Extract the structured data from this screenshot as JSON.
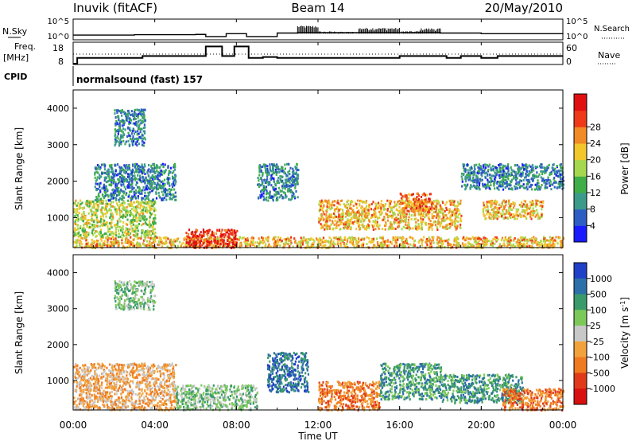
{
  "header": {
    "site": "Inuvik (fitACF)",
    "beam": "Beam 14",
    "date": "20/May/2010"
  },
  "left_labels": {
    "nsky": "N.Sky",
    "freq_a": "Freq.",
    "freq_b": "[MHz]",
    "cpid": "CPID"
  },
  "right_labels": {
    "nsearch": "N.Search",
    "nave": "Nave"
  },
  "nsky_ticks": [
    "10^5",
    "10^0"
  ],
  "nsearch_ticks": [
    "10^5",
    "10^0"
  ],
  "freq_ticks": [
    "18",
    "8"
  ],
  "nave_ticks": [
    "60",
    "0"
  ],
  "cpid_text": "normalsound (fast) 157",
  "time_ticks": [
    "00:00",
    "04:00",
    "08:00",
    "12:00",
    "16:00",
    "20:00",
    "00:00"
  ],
  "xlabel": "Time UT",
  "range_label": "Slant Range [km]",
  "range_ticks": [
    "1000",
    "2000",
    "3000",
    "4000"
  ],
  "power_colorbar": {
    "label": "Power [dB]",
    "ticks": [
      "4",
      "8",
      "12",
      "16",
      "20",
      "24",
      "28"
    ],
    "colors": [
      "#1a1aff",
      "#2e5dc4",
      "#3c9a8a",
      "#3fae49",
      "#a6d84f",
      "#f2c72c",
      "#f08b25",
      "#ee3a18",
      "#e01010"
    ]
  },
  "velocity_colorbar": {
    "label": "Velocity [m s",
    "label_sup": "-1",
    "label_end": "]",
    "ticks": [
      "1000",
      "500",
      "100",
      "25",
      "-25",
      "-100",
      "-500",
      "-1000"
    ],
    "colors": [
      "#2040c8",
      "#2d6fa8",
      "#3a9a6a",
      "#7cc95a",
      "#c8c8c8",
      "#f2a23a",
      "#f07a20",
      "#e03a1a",
      "#d81010"
    ]
  },
  "chart_data": [
    {
      "type": "line",
      "panel": "N.Sky / N.Search",
      "x_range": [
        "00:00",
        "24:00"
      ],
      "y_scale": "log",
      "y_range": [
        1,
        100000
      ],
      "series": [
        {
          "name": "N.Sky",
          "x": [
            0,
            3,
            6,
            6.5,
            7.5,
            8.5,
            10,
            11,
            12,
            13,
            14,
            15,
            16,
            17,
            18,
            20,
            22,
            24
          ],
          "y": [
            8,
            10,
            12,
            3,
            20,
            3,
            30,
            3000,
            80,
            60,
            800,
            800,
            100,
            600,
            30,
            20,
            20,
            15
          ]
        }
      ]
    },
    {
      "type": "line",
      "panel": "Freq. [MHz] / Nave",
      "x_range": [
        "00:00",
        "24:00"
      ],
      "y_range": [
        8,
        18
      ],
      "series": [
        {
          "name": "Freq.",
          "x": [
            0,
            0.2,
            3.2,
            3.4,
            6.5,
            7.3,
            7.9,
            8.6,
            9.3,
            10,
            16,
            18.3,
            19,
            20,
            20.8,
            24
          ],
          "y": [
            8,
            11,
            11,
            12,
            17,
            12,
            17,
            11,
            11.5,
            11,
            12,
            11,
            12,
            11,
            12,
            12
          ]
        }
      ]
    },
    {
      "type": "heatmap",
      "panel": "Power",
      "x_range": [
        "00:00",
        "24:00"
      ],
      "y_range": [
        180,
        4500
      ],
      "ylabel": "Slant Range [km]",
      "colorbar": "Power [dB]",
      "regions": [
        {
          "t": [
            0,
            24
          ],
          "r": [
            200,
            500
          ],
          "value": 20
        },
        {
          "t": [
            5.5,
            8
          ],
          "r": [
            200,
            700
          ],
          "value": 28
        },
        {
          "t": [
            0,
            4
          ],
          "r": [
            500,
            1500
          ],
          "value": 16
        },
        {
          "t": [
            1,
            5
          ],
          "r": [
            1500,
            2500
          ],
          "value": 8
        },
        {
          "t": [
            2,
            3.5
          ],
          "r": [
            3000,
            4000
          ],
          "value": 8
        },
        {
          "t": [
            9,
            11
          ],
          "r": [
            1500,
            2500
          ],
          "value": 8
        },
        {
          "t": [
            12,
            19
          ],
          "r": [
            700,
            1500
          ],
          "value": 20
        },
        {
          "t": [
            16,
            17.5
          ],
          "r": [
            1200,
            1700
          ],
          "value": 24
        },
        {
          "t": [
            20,
            23
          ],
          "r": [
            1000,
            1500
          ],
          "value": 20
        },
        {
          "t": [
            19,
            24
          ],
          "r": [
            1800,
            2500
          ],
          "value": 8
        }
      ]
    },
    {
      "type": "heatmap",
      "panel": "Velocity",
      "x_range": [
        "00:00",
        "24:00"
      ],
      "y_range": [
        180,
        4500
      ],
      "ylabel": "Slant Range [km]",
      "colorbar": "Velocity [m s-1]",
      "regions": [
        {
          "t": [
            0,
            5
          ],
          "r": [
            200,
            1500
          ],
          "value": -100
        },
        {
          "t": [
            5,
            9
          ],
          "r": [
            200,
            900
          ],
          "value": 25
        },
        {
          "t": [
            9.5,
            11.5
          ],
          "r": [
            700,
            1800
          ],
          "value": 500
        },
        {
          "t": [
            12,
            15
          ],
          "r": [
            200,
            1000
          ],
          "value": -500
        },
        {
          "t": [
            15,
            18
          ],
          "r": [
            500,
            1500
          ],
          "value": 100
        },
        {
          "t": [
            18,
            22
          ],
          "r": [
            400,
            1200
          ],
          "value": 100
        },
        {
          "t": [
            21,
            24
          ],
          "r": [
            200,
            800
          ],
          "value": -500
        },
        {
          "t": [
            2,
            4
          ],
          "r": [
            3000,
            3800
          ],
          "value": 25
        }
      ]
    }
  ]
}
